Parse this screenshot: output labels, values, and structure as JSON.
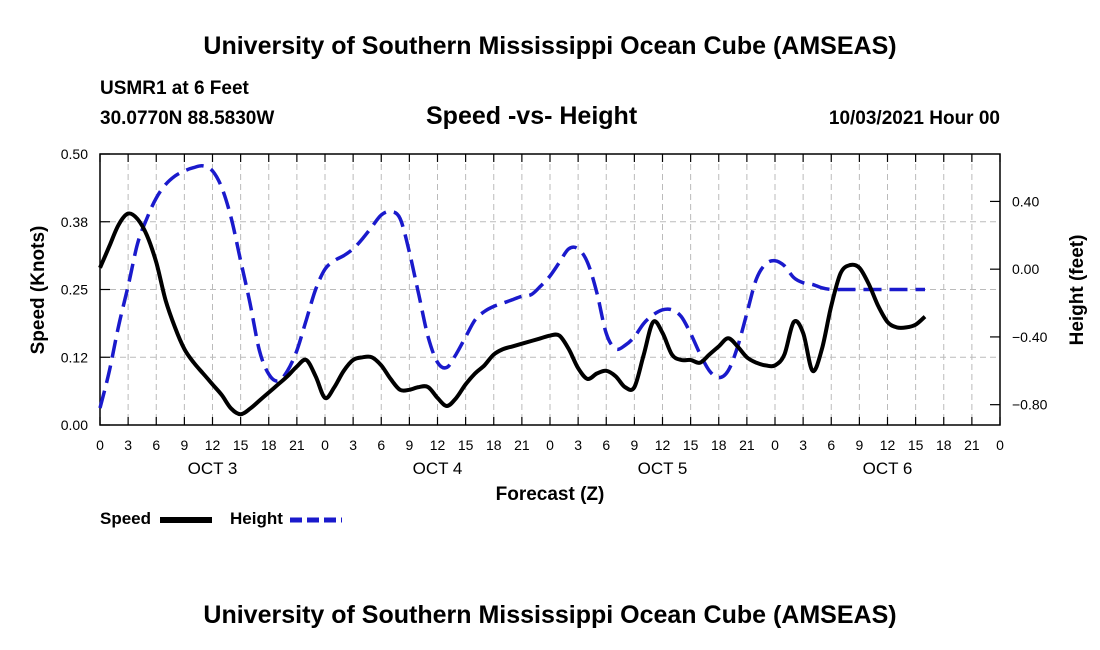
{
  "header": {
    "title": "University of Southern Mississippi Ocean Cube (AMSEAS)",
    "station": "USMR1 at 6 Feet",
    "coords": "30.0770N  88.5830W",
    "chart_title": "Speed -vs- Height",
    "datetime": "10/03/2021 Hour 00"
  },
  "footer": {
    "title": "University of Southern Mississippi Ocean Cube (AMSEAS)"
  },
  "colors": {
    "speed": "#000000",
    "height": "#1a1acc",
    "grid": "#bbbbbb"
  },
  "chart_data": {
    "type": "line",
    "title": "Speed -vs- Height",
    "xlabel": "Forecast (Z)",
    "ylabel": "Speed (Knots)",
    "ylabel_right": "Height (feet)",
    "x_range": [
      0,
      96
    ],
    "ylim": [
      0,
      0.5
    ],
    "ylim_right": [
      -0.92,
      0.68
    ],
    "yticks": [
      0,
      0.125,
      0.25,
      0.375,
      0.5
    ],
    "yticks_labels": [
      "0.00",
      "0.12",
      "0.25",
      "0.38",
      "0.50"
    ],
    "yticks_right": [
      -0.8,
      -0.4,
      0.0,
      0.4
    ],
    "yticks_right_labels": [
      "−0.80",
      "−0.40",
      "0.00",
      "0.40"
    ],
    "xticks": [
      0,
      3,
      6,
      9,
      12,
      15,
      18,
      21,
      24,
      27,
      30,
      33,
      36,
      39,
      42,
      45,
      48,
      51,
      54,
      57,
      60,
      63,
      66,
      69,
      72,
      75,
      78,
      81,
      84,
      87,
      90,
      93,
      96
    ],
    "xtick_labels": [
      "0",
      "3",
      "6",
      "9",
      "12",
      "15",
      "18",
      "21",
      "0",
      "3",
      "6",
      "9",
      "12",
      "15",
      "18",
      "21",
      "0",
      "3",
      "6",
      "9",
      "12",
      "15",
      "18",
      "21",
      "0",
      "3",
      "6",
      "9",
      "12",
      "15",
      "18",
      "21",
      "0"
    ],
    "day_labels": [
      {
        "x": 12,
        "label": "OCT 3"
      },
      {
        "x": 36,
        "label": "OCT 4"
      },
      {
        "x": 60,
        "label": "OCT 5"
      },
      {
        "x": 84,
        "label": "OCT 6"
      }
    ],
    "grid": true,
    "legend": [
      "Speed",
      "Height"
    ],
    "legend_position": "bottom-left",
    "series": [
      {
        "name": "Speed",
        "axis": "left",
        "style": "solid",
        "points": [
          [
            0,
            0.29
          ],
          [
            1,
            0.33
          ],
          [
            2,
            0.37
          ],
          [
            3,
            0.39
          ],
          [
            4,
            0.38
          ],
          [
            5,
            0.35
          ],
          [
            6,
            0.3
          ],
          [
            7,
            0.23
          ],
          [
            8,
            0.18
          ],
          [
            9,
            0.14
          ],
          [
            10,
            0.115
          ],
          [
            11,
            0.095
          ],
          [
            12,
            0.075
          ],
          [
            13,
            0.055
          ],
          [
            14,
            0.03
          ],
          [
            15,
            0.02
          ],
          [
            16,
            0.03
          ],
          [
            17,
            0.045
          ],
          [
            18,
            0.06
          ],
          [
            19,
            0.075
          ],
          [
            20,
            0.09
          ],
          [
            21,
            0.108
          ],
          [
            22,
            0.12
          ],
          [
            23,
            0.09
          ],
          [
            24,
            0.05
          ],
          [
            25,
            0.07
          ],
          [
            26,
            0.1
          ],
          [
            27,
            0.12
          ],
          [
            28,
            0.125
          ],
          [
            29,
            0.125
          ],
          [
            30,
            0.11
          ],
          [
            31,
            0.085
          ],
          [
            32,
            0.065
          ],
          [
            33,
            0.065
          ],
          [
            34,
            0.07
          ],
          [
            35,
            0.07
          ],
          [
            36,
            0.05
          ],
          [
            37,
            0.035
          ],
          [
            38,
            0.05
          ],
          [
            39,
            0.075
          ],
          [
            40,
            0.095
          ],
          [
            41,
            0.11
          ],
          [
            42,
            0.13
          ],
          [
            43,
            0.14
          ],
          [
            44,
            0.145
          ],
          [
            45,
            0.15
          ],
          [
            46,
            0.155
          ],
          [
            47,
            0.16
          ],
          [
            48,
            0.165
          ],
          [
            49,
            0.165
          ],
          [
            50,
            0.14
          ],
          [
            51,
            0.105
          ],
          [
            52,
            0.085
          ],
          [
            53,
            0.095
          ],
          [
            54,
            0.1
          ],
          [
            55,
            0.09
          ],
          [
            56,
            0.07
          ],
          [
            57,
            0.07
          ],
          [
            58,
            0.13
          ],
          [
            59,
            0.19
          ],
          [
            60,
            0.17
          ],
          [
            61,
            0.13
          ],
          [
            62,
            0.12
          ],
          [
            63,
            0.12
          ],
          [
            64,
            0.115
          ],
          [
            65,
            0.13
          ],
          [
            66,
            0.145
          ],
          [
            67,
            0.16
          ],
          [
            68,
            0.145
          ],
          [
            69,
            0.125
          ],
          [
            70,
            0.115
          ],
          [
            71,
            0.11
          ],
          [
            72,
            0.11
          ],
          [
            73,
            0.13
          ],
          [
            74,
            0.19
          ],
          [
            75,
            0.17
          ],
          [
            76,
            0.1
          ],
          [
            77,
            0.14
          ],
          [
            78,
            0.22
          ],
          [
            79,
            0.28
          ],
          [
            80,
            0.295
          ],
          [
            81,
            0.29
          ],
          [
            82,
            0.26
          ],
          [
            83,
            0.22
          ],
          [
            84,
            0.19
          ],
          [
            85,
            0.18
          ],
          [
            86,
            0.18
          ],
          [
            87,
            0.185
          ],
          [
            88,
            0.2
          ]
        ]
      },
      {
        "name": "Height",
        "axis": "right",
        "style": "dashed",
        "points": [
          [
            0,
            -0.82
          ],
          [
            1,
            -0.6
          ],
          [
            2,
            -0.33
          ],
          [
            3,
            -0.1
          ],
          [
            4,
            0.15
          ],
          [
            5,
            0.3
          ],
          [
            6,
            0.42
          ],
          [
            7,
            0.5
          ],
          [
            8,
            0.55
          ],
          [
            9,
            0.58
          ],
          [
            10,
            0.6
          ],
          [
            11,
            0.61
          ],
          [
            12,
            0.58
          ],
          [
            13,
            0.48
          ],
          [
            14,
            0.3
          ],
          [
            15,
            0.05
          ],
          [
            16,
            -0.2
          ],
          [
            17,
            -0.48
          ],
          [
            18,
            -0.62
          ],
          [
            19,
            -0.66
          ],
          [
            20,
            -0.6
          ],
          [
            21,
            -0.48
          ],
          [
            22,
            -0.3
          ],
          [
            23,
            -0.12
          ],
          [
            24,
            0.0
          ],
          [
            25,
            0.05
          ],
          [
            26,
            0.08
          ],
          [
            27,
            0.12
          ],
          [
            28,
            0.18
          ],
          [
            29,
            0.25
          ],
          [
            30,
            0.32
          ],
          [
            31,
            0.34
          ],
          [
            32,
            0.3
          ],
          [
            33,
            0.1
          ],
          [
            34,
            -0.15
          ],
          [
            35,
            -0.4
          ],
          [
            36,
            -0.55
          ],
          [
            37,
            -0.58
          ],
          [
            38,
            -0.5
          ],
          [
            39,
            -0.4
          ],
          [
            40,
            -0.3
          ],
          [
            41,
            -0.25
          ],
          [
            42,
            -0.22
          ],
          [
            43,
            -0.2
          ],
          [
            44,
            -0.18
          ],
          [
            45,
            -0.16
          ],
          [
            46,
            -0.15
          ],
          [
            47,
            -0.1
          ],
          [
            48,
            -0.04
          ],
          [
            49,
            0.04
          ],
          [
            50,
            0.12
          ],
          [
            51,
            0.12
          ],
          [
            52,
            0.04
          ],
          [
            53,
            -0.14
          ],
          [
            54,
            -0.38
          ],
          [
            55,
            -0.47
          ],
          [
            56,
            -0.45
          ],
          [
            57,
            -0.4
          ],
          [
            58,
            -0.32
          ],
          [
            59,
            -0.27
          ],
          [
            60,
            -0.24
          ],
          [
            61,
            -0.24
          ],
          [
            62,
            -0.28
          ],
          [
            63,
            -0.38
          ],
          [
            64,
            -0.5
          ],
          [
            65,
            -0.6
          ],
          [
            66,
            -0.64
          ],
          [
            67,
            -0.6
          ],
          [
            68,
            -0.46
          ],
          [
            69,
            -0.26
          ],
          [
            70,
            -0.06
          ],
          [
            71,
            0.03
          ],
          [
            72,
            0.05
          ],
          [
            73,
            0.02
          ],
          [
            74,
            -0.05
          ],
          [
            75,
            -0.08
          ],
          [
            76,
            -0.09
          ],
          [
            77,
            -0.11
          ],
          [
            78,
            -0.12
          ],
          [
            79,
            -0.12
          ],
          [
            80,
            -0.12
          ],
          [
            81,
            -0.12
          ],
          [
            82,
            -0.12
          ],
          [
            83,
            -0.12
          ],
          [
            84,
            -0.12
          ],
          [
            85,
            -0.12
          ],
          [
            86,
            -0.12
          ],
          [
            87,
            -0.12
          ],
          [
            88,
            -0.12
          ]
        ]
      }
    ]
  }
}
